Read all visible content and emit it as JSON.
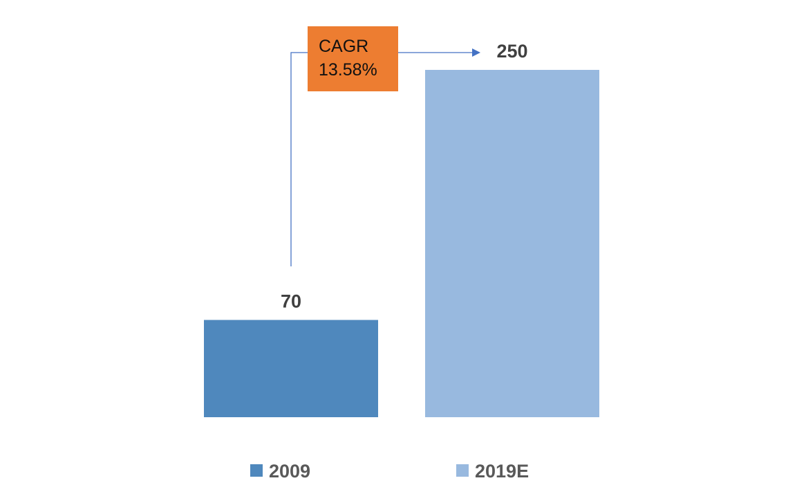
{
  "chart_data": {
    "type": "bar",
    "categories": [
      "2009",
      "2019E"
    ],
    "values": [
      70,
      250
    ],
    "data_labels": [
      "70",
      "250"
    ],
    "colors": [
      "#4f88bd",
      "#98b9df"
    ],
    "legend": {
      "position": "bottom",
      "entries": [
        {
          "label": "2009",
          "color": "#4f88bd"
        },
        {
          "label": "2019E",
          "color": "#98b9df"
        }
      ]
    },
    "annotation": {
      "line1": "CAGR",
      "line2": "13.58%",
      "box_color": "#ed7d31",
      "arrow_color": "#4472c4"
    },
    "ylim": [
      0,
      250
    ],
    "grid": false
  }
}
